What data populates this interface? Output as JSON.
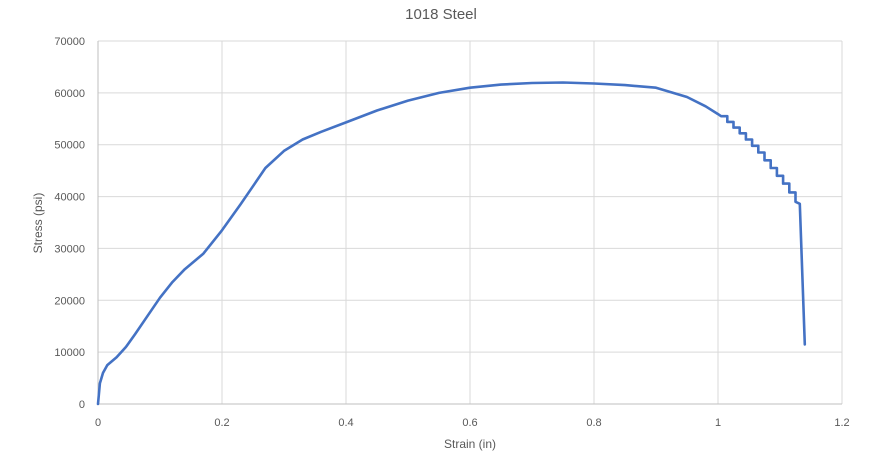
{
  "chart_data": {
    "type": "line",
    "title": "1018 Steel",
    "xlabel": "Strain (in)",
    "ylabel": "Stress (psi)",
    "xlim": [
      0,
      1.2
    ],
    "ylim": [
      0,
      70000
    ],
    "x_ticks": [
      "0",
      "0.2",
      "0.4",
      "0.6",
      "0.8",
      "1",
      "1.2"
    ],
    "y_ticks": [
      "0",
      "10000",
      "20000",
      "30000",
      "40000",
      "50000",
      "60000",
      "70000"
    ],
    "grid": "vertical and horizontal",
    "legend": "none",
    "series": [
      {
        "color": "#4472c4",
        "x": [
          0,
          0.003,
          0.008,
          0.015,
          0.03,
          0.045,
          0.06,
          0.08,
          0.1,
          0.12,
          0.14,
          0.17,
          0.2,
          0.23,
          0.25,
          0.27,
          0.3,
          0.33,
          0.36,
          0.4,
          0.45,
          0.5,
          0.55,
          0.6,
          0.65,
          0.7,
          0.75,
          0.8,
          0.85,
          0.9,
          0.95,
          0.98,
          1.0,
          1.005,
          1.015,
          1.015,
          1.025,
          1.025,
          1.035,
          1.035,
          1.045,
          1.045,
          1.055,
          1.055,
          1.065,
          1.065,
          1.075,
          1.075,
          1.085,
          1.085,
          1.095,
          1.095,
          1.105,
          1.105,
          1.115,
          1.115,
          1.125,
          1.125,
          1.132,
          1.14
        ],
        "y": [
          0,
          4000,
          6000,
          7500,
          9000,
          11000,
          13500,
          17000,
          20500,
          23500,
          26000,
          29000,
          33500,
          38500,
          42000,
          45500,
          48800,
          51000,
          52500,
          54300,
          56600,
          58500,
          60000,
          61000,
          61600,
          61900,
          62000,
          61800,
          61500,
          61000,
          59200,
          57400,
          55900,
          55500,
          55500,
          54400,
          54400,
          53300,
          53300,
          52200,
          52200,
          51000,
          51000,
          49800,
          49800,
          48500,
          48500,
          47000,
          47000,
          45500,
          45500,
          44000,
          44000,
          42500,
          42500,
          40800,
          40800,
          39000,
          38600,
          11500
        ]
      }
    ]
  }
}
